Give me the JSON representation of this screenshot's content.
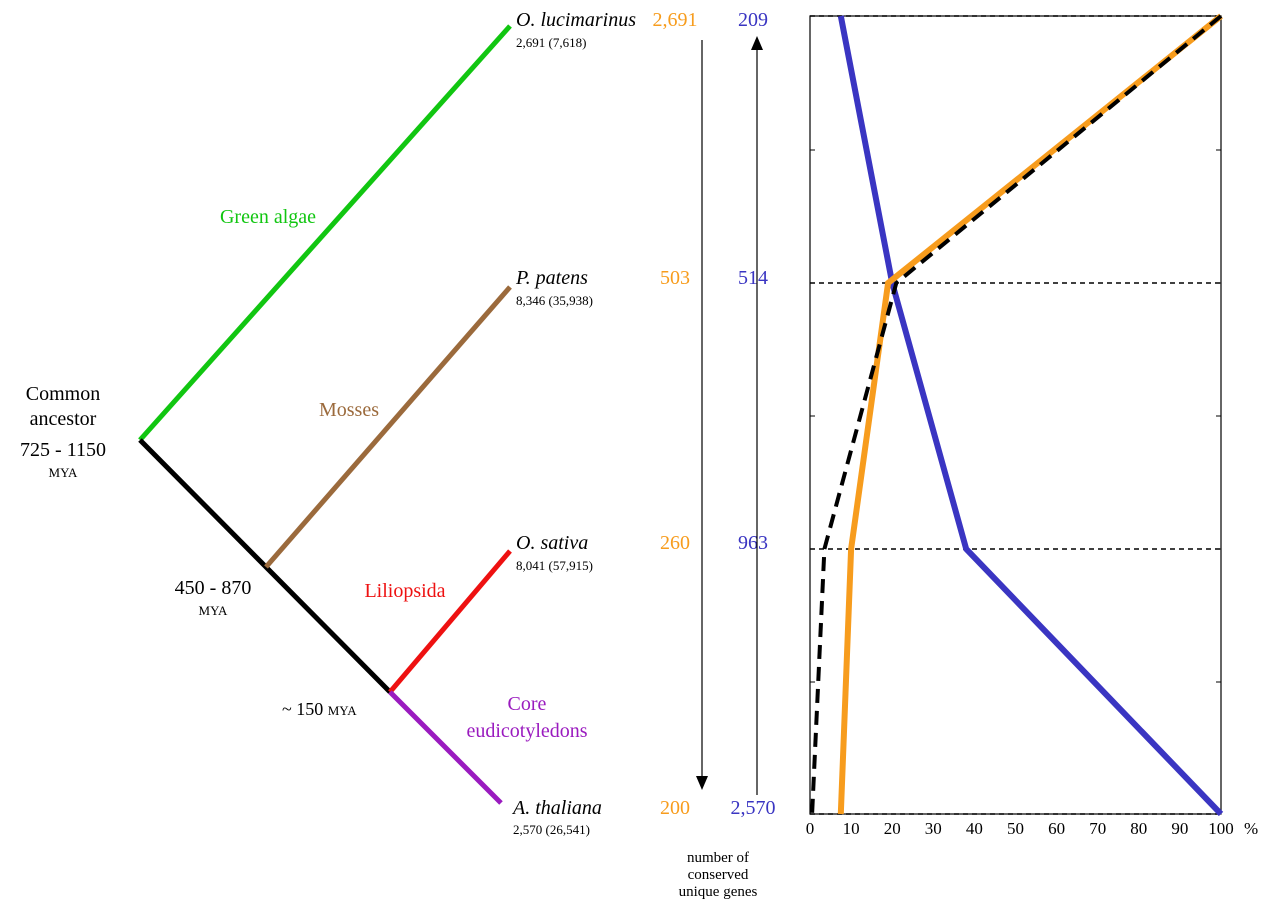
{
  "colors": {
    "green_algae": "#11c611",
    "mosses": "#9b6a3c",
    "liliopsida": "#ee1111",
    "eudicots": "#9a1bbf",
    "trunk": "#000000",
    "orange": "#f79c1d",
    "blue": "#3a35c2",
    "dashed": "#000000"
  },
  "tree": {
    "common_ancestor": {
      "line1": "Common",
      "line2": "ancestor",
      "age": "725 - 1150",
      "unit": "MYA"
    },
    "node_mosses_age": {
      "age": "450 - 870",
      "unit": "MYA"
    },
    "node_core_age": {
      "prefix": "~ 150",
      "unit": "MYA"
    },
    "clades": {
      "green_algae": "Green algae",
      "mosses": "Mosses",
      "liliopsida": "Liliopsida",
      "core_line1": "Core",
      "core_line2": "eudicotyledons"
    },
    "species": [
      {
        "name": "O. lucimarinus",
        "counts": "2,691 (7,618)",
        "orange": "2,691",
        "blue": "209"
      },
      {
        "name": "P. patens",
        "counts": "8,346 (35,938)",
        "orange": "503",
        "blue": "514"
      },
      {
        "name": "O. sativa",
        "counts": "8,041 (57,915)",
        "orange": "260",
        "blue": "963"
      },
      {
        "name": "A. thaliana",
        "counts": "2,570 (26,541)",
        "orange": "200",
        "blue": "2,570"
      }
    ]
  },
  "caption": {
    "line1": "number of",
    "line2": "conserved",
    "line3": "unique genes"
  },
  "chart_data": {
    "type": "line",
    "orientation": "horizontal-value",
    "categories": [
      "O. lucimarinus",
      "P. patens",
      "O. sativa",
      "A. thaliana"
    ],
    "xlim": [
      0,
      100
    ],
    "xticks": [
      "0",
      "10",
      "20",
      "30",
      "40",
      "50",
      "60",
      "70",
      "80",
      "90",
      "100"
    ],
    "x_unit": "%",
    "series": [
      {
        "key": "blue",
        "values": [
          7.5,
          20,
          38,
          100
        ]
      },
      {
        "key": "orange",
        "values": [
          100,
          19,
          10,
          7.5
        ]
      },
      {
        "key": "dashed",
        "values": [
          100,
          21,
          3.5,
          0.5
        ]
      }
    ]
  }
}
